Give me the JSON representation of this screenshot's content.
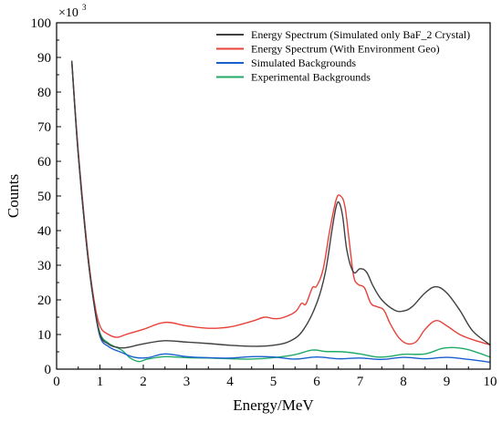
{
  "chart_data": {
    "type": "line",
    "xlabel": "Energy/MeV",
    "ylabel": "Counts",
    "y_multiplier": {
      "base": "×10",
      "exponent": "3"
    },
    "xlim": [
      0,
      10
    ],
    "ylim": [
      0,
      100
    ],
    "x_ticks": [
      0,
      1,
      2,
      3,
      4,
      5,
      6,
      7,
      8,
      9,
      10
    ],
    "y_ticks": [
      0,
      10,
      20,
      30,
      40,
      50,
      60,
      70,
      80,
      90,
      100
    ],
    "grid": false,
    "legend_position": "top-right",
    "series": [
      {
        "name": "Energy Spectrum (Simulated only BaF_2 Crystal)",
        "color": "#404040",
        "x": [
          0.35,
          0.5,
          0.7,
          0.85,
          1.0,
          1.2,
          1.4,
          1.6,
          2.0,
          2.5,
          3.0,
          3.5,
          4.0,
          4.5,
          5.0,
          5.4,
          5.7,
          6.0,
          6.2,
          6.35,
          6.45,
          6.52,
          6.6,
          6.7,
          6.85,
          7.0,
          7.15,
          7.3,
          7.5,
          7.8,
          8.0,
          8.2,
          8.5,
          8.75,
          9.0,
          9.3,
          9.6,
          10.0
        ],
        "y": [
          89,
          62,
          35,
          20,
          10,
          7.2,
          6.3,
          6.2,
          7.3,
          8.2,
          7.8,
          7.4,
          6.9,
          6.6,
          6.9,
          8.2,
          11.5,
          19,
          28,
          40,
          47,
          48,
          44,
          34,
          28,
          29,
          28,
          24,
          20,
          17,
          16.8,
          18,
          22,
          23.8,
          22,
          17,
          11,
          7
        ]
      },
      {
        "name": "Energy Spectrum (With Environment Geo)",
        "color": "#e8413a",
        "x": [
          0.35,
          0.5,
          0.7,
          0.85,
          1.0,
          1.2,
          1.4,
          1.6,
          2.0,
          2.5,
          3.0,
          3.5,
          4.0,
          4.5,
          4.8,
          5.0,
          5.2,
          5.5,
          5.65,
          5.75,
          5.9,
          6.0,
          6.15,
          6.3,
          6.45,
          6.55,
          6.65,
          6.75,
          6.85,
          6.95,
          7.1,
          7.25,
          7.4,
          7.55,
          7.7,
          7.9,
          8.1,
          8.3,
          8.5,
          8.75,
          9.0,
          9.3,
          9.6,
          10.0
        ],
        "y": [
          89,
          63,
          36,
          21,
          12.5,
          10,
          9.2,
          10,
          11.5,
          13.5,
          12.5,
          11.8,
          12.2,
          13.8,
          15,
          14.6,
          14.8,
          16.5,
          19,
          18.8,
          23.5,
          24,
          29,
          40,
          49,
          50,
          47,
          37,
          27,
          24.5,
          23.5,
          19,
          18,
          17,
          13,
          9,
          7.3,
          8,
          11.5,
          14,
          12.5,
          10,
          8.5,
          7
        ]
      },
      {
        "name": "Simulated Backgrounds",
        "color": "#1a5fd0",
        "x": [
          0.35,
          0.5,
          0.7,
          0.85,
          1.0,
          1.2,
          1.5,
          1.8,
          2.1,
          2.5,
          3.0,
          3.5,
          4.0,
          4.5,
          5.0,
          5.5,
          6.0,
          6.5,
          7.0,
          7.5,
          8.0,
          8.5,
          9.0,
          9.5,
          10.0
        ],
        "y": [
          89,
          62,
          35,
          20,
          9.5,
          6.5,
          4.8,
          3.4,
          3.3,
          4.4,
          3.6,
          3.3,
          3.2,
          3.6,
          3.5,
          2.9,
          3.5,
          3.0,
          3.2,
          2.8,
          3.4,
          3.0,
          3.4,
          2.8,
          2.0
        ]
      },
      {
        "name": "Experimental Backgrounds",
        "color": "#1faa66",
        "x": [
          0.35,
          0.5,
          0.7,
          0.85,
          1.0,
          1.2,
          1.5,
          1.7,
          1.9,
          2.1,
          2.5,
          3.0,
          3.5,
          4.0,
          4.5,
          5.0,
          5.5,
          5.9,
          6.2,
          6.6,
          7.0,
          7.4,
          7.7,
          8.0,
          8.5,
          8.9,
          9.2,
          9.5,
          10.0
        ],
        "y": [
          89,
          62,
          35,
          20,
          10.5,
          7.5,
          5.5,
          3.2,
          2.2,
          2.9,
          3.6,
          3.3,
          3.2,
          3.0,
          2.9,
          3.3,
          4.2,
          5.5,
          5.1,
          5.0,
          4.4,
          3.5,
          3.7,
          4.3,
          4.4,
          6.0,
          6.2,
          5.6,
          3.5
        ]
      }
    ]
  }
}
